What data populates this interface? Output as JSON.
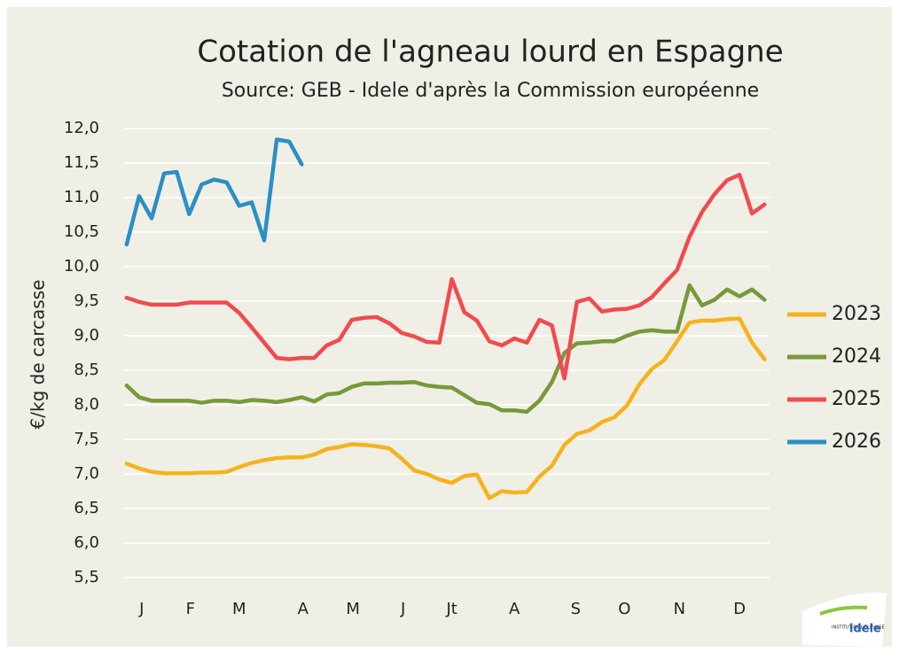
{
  "chart_data": {
    "type": "line",
    "title": "Cotation de l'agneau lourd en Espagne",
    "subtitle": "Source: GEB - Idele d'après la Commission européenne",
    "y_label": "€/kg de carcasse",
    "x": [
      1,
      2,
      3,
      4,
      5,
      6,
      7,
      8,
      9,
      10,
      11,
      12,
      13,
      14,
      15,
      16,
      17,
      18,
      19,
      20,
      21,
      22,
      23,
      24,
      25,
      26,
      27,
      28,
      29,
      30,
      31,
      32,
      33,
      34,
      35,
      36,
      37,
      38,
      39,
      40,
      41,
      42,
      43,
      44,
      45,
      46,
      47,
      48,
      49,
      50,
      51,
      52
    ],
    "xlim": [
      0.8,
      52.4
    ],
    "xticks": [
      {
        "value": 2.2,
        "label": "J"
      },
      {
        "value": 6.1,
        "label": "F"
      },
      {
        "value": 10,
        "label": "M"
      },
      {
        "value": 15.1,
        "label": "A"
      },
      {
        "value": 19.1,
        "label": "M"
      },
      {
        "value": 23.1,
        "label": "J"
      },
      {
        "value": 27,
        "label": "Jt"
      },
      {
        "value": 32,
        "label": "A"
      },
      {
        "value": 36.9,
        "label": "S"
      },
      {
        "value": 40.8,
        "label": "O"
      },
      {
        "value": 45.2,
        "label": "N"
      },
      {
        "value": 50,
        "label": "D"
      }
    ],
    "ylim": [
      5.5,
      12
    ],
    "yticks": [
      {
        "value": 5.5,
        "label": "5,5"
      },
      {
        "value": 6,
        "label": "6,0"
      },
      {
        "value": 6.5,
        "label": "6,5"
      },
      {
        "value": 7,
        "label": "7,0"
      },
      {
        "value": 7.5,
        "label": "7,5"
      },
      {
        "value": 8,
        "label": "8,0"
      },
      {
        "value": 8.5,
        "label": "8,5"
      },
      {
        "value": 9,
        "label": "9,0"
      },
      {
        "value": 9.5,
        "label": "9,5"
      },
      {
        "value": 10,
        "label": "10,0"
      },
      {
        "value": 10.5,
        "label": "10,5"
      },
      {
        "value": 11,
        "label": "11,0"
      },
      {
        "value": 11.5,
        "label": "11,5"
      },
      {
        "value": 12,
        "label": "12,0"
      }
    ],
    "grid": true,
    "legend": "right",
    "series": [
      {
        "name": "2023",
        "color": "#f6b21e",
        "values": [
          7.15,
          7.08,
          7.03,
          7.01,
          7.01,
          7.01,
          7.02,
          7.02,
          7.03,
          7.1,
          7.16,
          7.2,
          7.23,
          7.24,
          7.24,
          7.28,
          7.36,
          7.39,
          7.43,
          7.42,
          7.4,
          7.37,
          7.22,
          7.05,
          7.0,
          6.92,
          6.87,
          6.97,
          6.99,
          6.65,
          6.75,
          6.73,
          6.74,
          6.96,
          7.12,
          7.42,
          7.58,
          7.63,
          7.75,
          7.82,
          7.99,
          8.3,
          8.52,
          8.65,
          8.92,
          9.19,
          9.22,
          9.22,
          9.24,
          9.25,
          8.9,
          8.66
        ]
      },
      {
        "name": "2024",
        "color": "#77993a",
        "values": [
          8.28,
          8.11,
          8.06,
          8.06,
          8.06,
          8.06,
          8.03,
          8.06,
          8.06,
          8.04,
          8.07,
          8.06,
          8.04,
          8.07,
          8.11,
          8.05,
          8.15,
          8.17,
          8.26,
          8.31,
          8.31,
          8.32,
          8.32,
          8.33,
          8.28,
          8.26,
          8.25,
          8.14,
          8.03,
          8.01,
          7.92,
          7.92,
          7.9,
          8.06,
          8.33,
          8.75,
          8.89,
          8.9,
          8.92,
          8.92,
          9.0,
          9.06,
          9.08,
          9.06,
          9.06,
          9.73,
          9.44,
          9.52,
          9.67,
          9.57,
          9.67,
          9.52
        ]
      },
      {
        "name": "2025",
        "color": "#f24a4e",
        "values": [
          9.55,
          9.49,
          9.45,
          9.45,
          9.45,
          9.48,
          9.48,
          9.48,
          9.48,
          9.33,
          9.12,
          8.9,
          8.68,
          8.66,
          8.68,
          8.68,
          8.86,
          8.94,
          9.23,
          9.26,
          9.27,
          9.18,
          9.04,
          8.99,
          8.91,
          8.9,
          9.82,
          9.34,
          9.22,
          8.92,
          8.86,
          8.96,
          8.9,
          9.23,
          9.15,
          8.38,
          9.49,
          9.54,
          9.35,
          9.38,
          9.39,
          9.44,
          9.56,
          9.76,
          9.95,
          10.43,
          10.79,
          11.05,
          11.25,
          11.33,
          10.77,
          10.9
        ]
      },
      {
        "name": "2026",
        "color": "#2b8fc4",
        "values": [
          10.32,
          11.02,
          10.7,
          11.35,
          11.37,
          10.76,
          11.19,
          11.26,
          11.22,
          10.88,
          10.93,
          10.38,
          11.84,
          11.81,
          11.48,
          null,
          null,
          null,
          null,
          null,
          null,
          null,
          null,
          null,
          null,
          null,
          null,
          null,
          null,
          null,
          null,
          null,
          null,
          null,
          null,
          null,
          null,
          null,
          null,
          null,
          null,
          null,
          null,
          null,
          null,
          null,
          null,
          null,
          null,
          null,
          null,
          null
        ]
      }
    ]
  },
  "logo": {
    "small": "INSTITUT DE L'ÉLEVAGE",
    "brand": "idele"
  }
}
